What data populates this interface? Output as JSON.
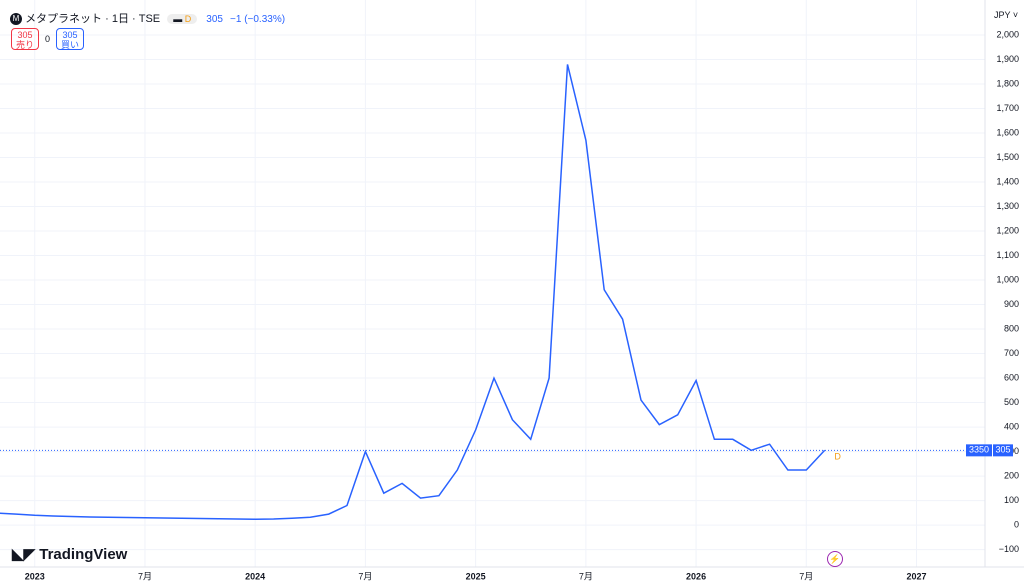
{
  "header": {
    "symbol": "メタプラネット · 1日 · TSE",
    "flag": "D",
    "price": 305,
    "change": "−1 (−0.33%)",
    "currency": "JPY"
  },
  "trade": {
    "sell_price": 305,
    "sell_label": "売り",
    "spread": 0,
    "buy_price": 305,
    "buy_label": "買い"
  },
  "brand": "TradingView",
  "chart_data": {
    "type": "line",
    "x": [
      "2022-11",
      "2022-12",
      "2023-01",
      "2023-02",
      "2023-03",
      "2023-04",
      "2023-05",
      "2023-06",
      "2023-07",
      "2023-08",
      "2023-09",
      "2023-10",
      "2023-11",
      "2023-12",
      "2024-01",
      "2024-02",
      "2024-03",
      "2024-04",
      "2024-05",
      "2024-06",
      "2024-07",
      "2024-08",
      "2024-09",
      "2024-10",
      "2024-11",
      "2024-12",
      "2025-01",
      "2025-02",
      "2025-03",
      "2025-04",
      "2025-05",
      "2025-06",
      "2025-07",
      "2025-08",
      "2025-09",
      "2025-10",
      "2025-11",
      "2025-12",
      "2026-01",
      "2026-02",
      "2026-03",
      "2026-04",
      "2026-05",
      "2026-06",
      "2026-07",
      "2026-08"
    ],
    "series": [
      {
        "name": "メタプラネット",
        "color": "#2962ff",
        "values": [
          49,
          45,
          40,
          37,
          35,
          33,
          32,
          31,
          30,
          29,
          28,
          27,
          26,
          25,
          24,
          25,
          28,
          32,
          45,
          80,
          300,
          130,
          170,
          110,
          120,
          225,
          388,
          600,
          430,
          350,
          600,
          1880,
          1570,
          960,
          840,
          510,
          410,
          450,
          590,
          350,
          350,
          305,
          330,
          225,
          225,
          305
        ]
      }
    ],
    "xlim": [
      "2022-11",
      "2027-05"
    ],
    "xticks": [
      {
        "value": "2023-01",
        "label": "2023"
      },
      {
        "value": "2023-07",
        "label": "7月"
      },
      {
        "value": "2024-01",
        "label": "2024"
      },
      {
        "value": "2024-07",
        "label": "7月"
      },
      {
        "value": "2025-01",
        "label": "2025"
      },
      {
        "value": "2025-07",
        "label": "7月"
      },
      {
        "value": "2026-01",
        "label": "2026"
      },
      {
        "value": "2026-07",
        "label": "7月"
      },
      {
        "value": "2027-01",
        "label": "2027"
      }
    ],
    "ylim": [
      -171,
      2110
    ],
    "yticks": [
      {
        "value": -100,
        "label": "−100"
      },
      0,
      100,
      200,
      300,
      400,
      500,
      600,
      700,
      800,
      900,
      {
        "value": 1000,
        "label": "1,000"
      },
      {
        "value": 1100,
        "label": "1,100"
      },
      {
        "value": 1200,
        "label": "1,200"
      },
      {
        "value": 1300,
        "label": "1,300"
      },
      {
        "value": 1400,
        "label": "1,400"
      },
      {
        "value": 1500,
        "label": "1,500"
      },
      {
        "value": 1600,
        "label": "1,600"
      },
      {
        "value": 1700,
        "label": "1,700"
      },
      {
        "value": 1800,
        "label": "1,800"
      },
      {
        "value": 1900,
        "label": "1,900"
      },
      {
        "value": 2000,
        "label": "2,000"
      }
    ],
    "grid": true,
    "last_price": 305,
    "countdown": "3350",
    "last_marker": "D"
  }
}
